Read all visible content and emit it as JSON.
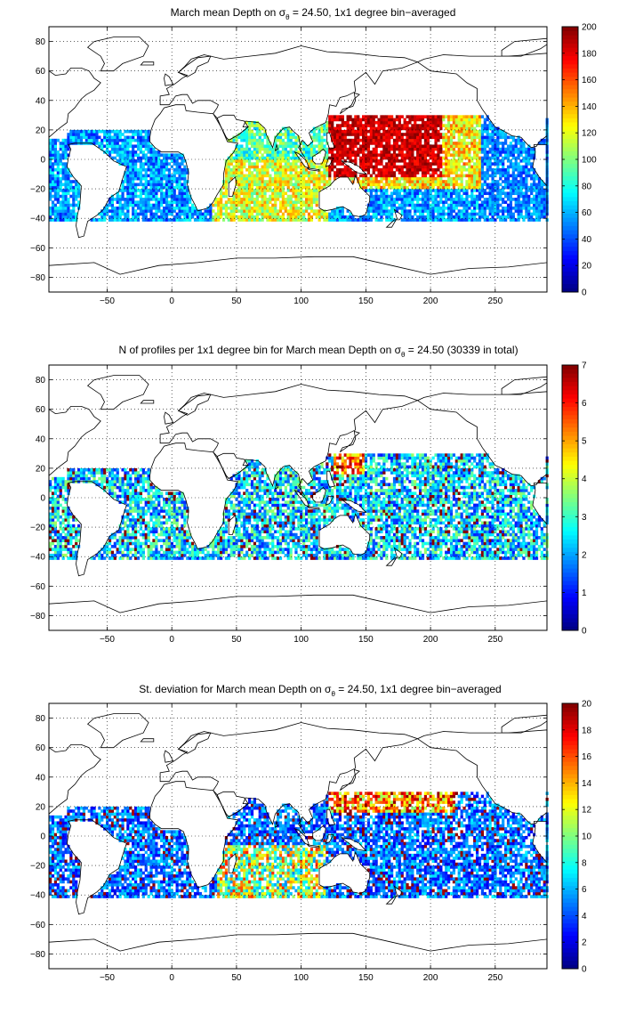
{
  "panels": [
    {
      "title_pre": "March mean Depth on σ",
      "title_sub": "θ",
      "title_post": " = 24.50, 1x1 degree bin−averaged",
      "colorbar": {
        "min": 0,
        "max": 200,
        "ticks": [
          0,
          20,
          40,
          60,
          80,
          100,
          120,
          140,
          160,
          180,
          200
        ]
      },
      "field": "depth"
    },
    {
      "title_pre": "N of profiles per 1x1 degree bin for March mean Depth on σ",
      "title_sub": "θ",
      "title_post": " = 24.50 (30339 in total)",
      "colorbar": {
        "min": 0,
        "max": 7,
        "ticks": [
          0,
          1,
          2,
          3,
          4,
          5,
          6,
          7
        ]
      },
      "field": "count"
    },
    {
      "title_pre": "St. deviation for March mean Depth on σ",
      "title_sub": "θ",
      "title_post": " = 24.50, 1x1 degree bin−averaged",
      "colorbar": {
        "min": 0,
        "max": 20,
        "ticks": [
          0,
          2,
          4,
          6,
          8,
          10,
          12,
          14,
          16,
          18,
          20
        ]
      },
      "field": "std"
    }
  ],
  "map": {
    "lon_range": [
      -95,
      290
    ],
    "lat_range": [
      -90,
      90
    ],
    "x_ticks": [
      -50,
      0,
      50,
      100,
      150,
      200,
      250
    ],
    "y_ticks": [
      -80,
      -60,
      -40,
      -20,
      0,
      20,
      40,
      60,
      80
    ],
    "grid": "dotted",
    "colormap": "jet"
  },
  "chart_data": [
    {
      "type": "heatmap",
      "title": "March mean Depth on σθ = 24.50, 1x1 degree bin−averaged",
      "xlim": [
        -95,
        290
      ],
      "ylim": [
        -90,
        90
      ],
      "colorbar_range": [
        0,
        200
      ],
      "regions": [
        {
          "area": "Western Pacific warm pool (120–200E, 0–30N)",
          "approx_value": 180
        },
        {
          "area": "Western Pacific (130–220E, 10S–0)",
          "approx_value": 160
        },
        {
          "area": "Central Pacific band (180–260E, 10S–20N)",
          "approx_value": 110
        },
        {
          "area": "Eastern Pacific (230–285E, 40S–20N)",
          "approx_value": 40
        },
        {
          "area": "Bay of Bengal / Arabian Sea (50–100E, 5–25N)",
          "approx_value": 80
        },
        {
          "area": "Southern Indian Ocean (40–120E, 40S–5S)",
          "approx_value": 110
        },
        {
          "area": "Tropical Atlantic (-60–10E, 40S–20N)",
          "approx_value": 60
        }
      ]
    },
    {
      "type": "heatmap",
      "title": "N of profiles per 1x1 degree bin for March mean Depth on σθ = 24.50 (30339 in total)",
      "xlim": [
        -95,
        290
      ],
      "ylim": [
        -90,
        90
      ],
      "colorbar_range": [
        0,
        7
      ],
      "regions": [
        {
          "area": "Kuroshio / western Pacific (125–150E, 15–30N)",
          "approx_value": 6
        },
        {
          "area": "Tropical Pacific (150–280E, 40S–25N)",
          "approx_value": 2
        },
        {
          "area": "Indian Ocean (40–120E, 40S–25N)",
          "approx_value": 2
        },
        {
          "area": "Tropical Atlantic (-60–10E, 40S–20N)",
          "approx_value": 2
        }
      ]
    },
    {
      "type": "heatmap",
      "title": "St. deviation for March mean Depth on σθ = 24.50, 1x1 degree bin−averaged",
      "xlim": [
        -95,
        290
      ],
      "ylim": [
        -90,
        90
      ],
      "colorbar_range": [
        0,
        20
      ],
      "regions": [
        {
          "area": "Northwest Pacific (120–220E, 15–30N)",
          "approx_value": 17
        },
        {
          "area": "Southern Indian Ocean (40–120E, 40S–10S)",
          "approx_value": 12
        },
        {
          "area": "Tropical Pacific interior (140–280E, 40S–15N)",
          "approx_value": 5
        },
        {
          "area": "Tropical Atlantic (-60–10E, 40S–20N)",
          "approx_value": 4
        }
      ]
    }
  ]
}
